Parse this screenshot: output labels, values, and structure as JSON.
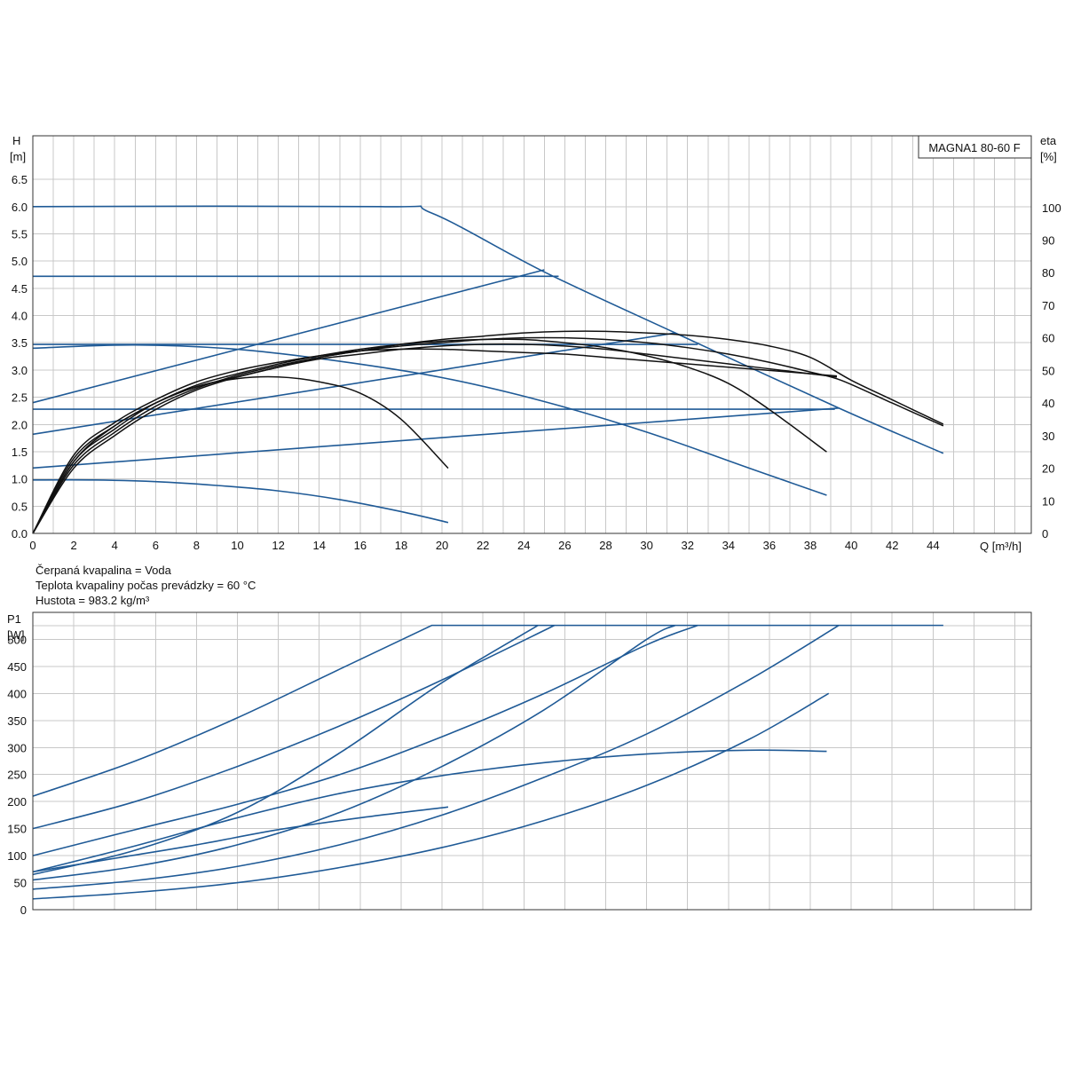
{
  "info": {
    "fluid": "Čerpaná kvapalina = Voda",
    "temperature": "Teplota kvapaliny počas prevádzky = 60 °C",
    "density": "Hustota = 983.2 kg/m³"
  },
  "chart_data": [
    {
      "type": "line",
      "title": "MAGNA1 80-60 F",
      "ylabel": "H",
      "yunit": "[m]",
      "y2label": "eta",
      "y2unit": "[%]",
      "xlabel": "Q [m³/h]",
      "xlim": [
        0,
        48.8
      ],
      "ylim": [
        0,
        7.3
      ],
      "y2lim": [
        0,
        122
      ],
      "xticks": [
        0,
        2,
        4,
        6,
        8,
        10,
        12,
        14,
        16,
        18,
        20,
        22,
        24,
        26,
        28,
        30,
        32,
        34,
        36,
        38,
        40,
        42,
        44
      ],
      "yticks": [
        0.0,
        0.5,
        1.0,
        1.5,
        2.0,
        2.5,
        3.0,
        3.5,
        4.0,
        4.5,
        5.0,
        5.5,
        6.0,
        6.5
      ],
      "yticklabels": [
        "0.0",
        "0.5",
        "1.0",
        "1.5",
        "2.0",
        "2.5",
        "3.0",
        "3.5",
        "4.0",
        "4.5",
        "5.0",
        "5.5",
        "6.0",
        "6.5"
      ],
      "y2ticks": [
        0,
        10,
        20,
        30,
        40,
        50,
        60,
        70,
        80,
        90,
        100
      ],
      "grid": true,
      "head_curves": [
        {
          "color": "#1f5a96",
          "x": [
            0,
            17,
            19.5,
            25,
            31.4,
            39.4,
            44.5
          ],
          "y": [
            6.0,
            6.0,
            5.88,
            4.8,
            3.68,
            2.3,
            1.47
          ]
        },
        {
          "color": "#1f5a96",
          "x": [
            0,
            25.7
          ],
          "y": [
            4.72,
            4.72
          ]
        },
        {
          "color": "#1f5a96",
          "x": [
            0,
            32.5
          ],
          "y": [
            3.47,
            3.47
          ]
        },
        {
          "color": "#1f5a96",
          "x": [
            0,
            39.2
          ],
          "y": [
            2.28,
            2.28
          ]
        },
        {
          "color": "#1f5a96",
          "x": [
            0,
            25
          ],
          "y": [
            2.4,
            4.84
          ]
        },
        {
          "color": "#1f5a96",
          "x": [
            0,
            31.4
          ],
          "y": [
            1.82,
            3.68
          ]
        },
        {
          "color": "#1f5a96",
          "x": [
            0,
            39.4
          ],
          "y": [
            1.2,
            2.3
          ]
        },
        {
          "color": "#1f5a96",
          "x": [
            0,
            5,
            10,
            15,
            20,
            25,
            30,
            35,
            38.8
          ],
          "y": [
            3.4,
            3.46,
            3.38,
            3.16,
            2.86,
            2.42,
            1.86,
            1.2,
            0.7
          ]
        },
        {
          "color": "#1f5a96",
          "x": [
            0,
            3,
            6,
            9,
            12,
            15,
            18,
            20.3
          ],
          "y": [
            0.98,
            0.98,
            0.95,
            0.88,
            0.78,
            0.62,
            0.4,
            0.2
          ]
        }
      ],
      "eta_curves": [
        {
          "x": [
            0,
            2,
            4,
            6,
            8,
            10,
            12,
            14,
            16,
            18,
            20,
            22,
            24,
            26,
            28,
            30,
            32,
            34,
            36,
            38,
            40,
            42,
            44.5
          ],
          "y": [
            0,
            20,
            30,
            38,
            44,
            48,
            51,
            54,
            56,
            58,
            59.5,
            60.5,
            61.5,
            62,
            62,
            61.5,
            60.8,
            59.5,
            57.5,
            54,
            47,
            41,
            33.5
          ]
        },
        {
          "x": [
            0,
            2,
            4,
            6,
            8,
            10,
            12,
            14,
            16,
            18,
            20,
            22,
            24,
            26,
            28,
            30,
            32,
            34,
            36,
            38,
            39.5,
            42,
            44.5
          ],
          "y": [
            0,
            21,
            31,
            39,
            44.5,
            48.5,
            51.5,
            54,
            56,
            57.5,
            58.5,
            59.5,
            60,
            60,
            59.5,
            58.5,
            57,
            55,
            52.5,
            49.5,
            47,
            40,
            33
          ]
        },
        {
          "x": [
            0,
            2,
            4,
            6,
            8,
            10,
            12,
            14,
            16,
            18,
            20,
            22,
            24,
            26,
            28,
            30,
            32,
            34,
            36,
            38.8
          ],
          "y": [
            0,
            22,
            33,
            40,
            45.5,
            49,
            52,
            54.5,
            56.5,
            58,
            59,
            59.5,
            59.5,
            58.5,
            57,
            54.5,
            51,
            46,
            38,
            25
          ]
        },
        {
          "x": [
            0,
            2,
            4,
            6,
            8,
            10,
            12,
            14,
            16,
            18,
            20,
            22,
            24,
            26,
            28,
            30,
            32,
            34,
            36,
            38,
            39.3
          ],
          "y": [
            0,
            24,
            34,
            41,
            46.5,
            50,
            52.5,
            54.5,
            56,
            56.5,
            56.5,
            56,
            55.5,
            55,
            54,
            53,
            52,
            51,
            50,
            49,
            48.3
          ]
        },
        {
          "x": [
            0,
            2,
            4,
            6,
            8,
            10,
            12,
            14,
            16,
            18,
            20,
            22,
            24,
            26,
            28,
            30,
            32,
            34,
            36,
            38,
            39.3
          ],
          "y": [
            0,
            23,
            33,
            40,
            45,
            48,
            51,
            53.5,
            55,
            56.5,
            57.5,
            58,
            58,
            57.5,
            56.5,
            55,
            53.5,
            52,
            50.5,
            49,
            48
          ]
        },
        {
          "x": [
            0,
            2,
            4,
            6,
            8,
            10,
            12,
            14,
            16,
            18,
            20.3
          ],
          "y": [
            0,
            22,
            32,
            40,
            45,
            47.5,
            48,
            46.5,
            43,
            35,
            20
          ]
        }
      ]
    },
    {
      "type": "line",
      "ylabel": "P1",
      "yunit": "[W]",
      "xlim": [
        0,
        48.8
      ],
      "ylim": [
        0,
        550
      ],
      "yticks": [
        0,
        50,
        100,
        150,
        200,
        250,
        300,
        350,
        400,
        450,
        500
      ],
      "xticks": [
        0,
        2,
        4,
        6,
        8,
        10,
        12,
        14,
        16,
        18,
        20,
        22,
        24,
        26,
        28,
        30,
        32,
        34,
        36,
        38,
        40,
        42,
        44
      ],
      "grid": true,
      "power_curves": [
        {
          "x": [
            0,
            5,
            10,
            15,
            19.5,
            44.5
          ],
          "y": [
            210,
            275,
            355,
            445,
            526,
            526
          ]
        },
        {
          "x": [
            0,
            5,
            10,
            15,
            20,
            25.5
          ],
          "y": [
            150,
            200,
            265,
            340,
            425,
            526
          ]
        },
        {
          "x": [
            0,
            5,
            10,
            15,
            20,
            24.7
          ],
          "y": [
            65,
            110,
            180,
            290,
            420,
            526
          ]
        },
        {
          "x": [
            0,
            5,
            10,
            15,
            20,
            25,
            30,
            32.5
          ],
          "y": [
            100,
            148,
            195,
            250,
            320,
            400,
            490,
            526
          ]
        },
        {
          "x": [
            0,
            5,
            10,
            15,
            20,
            25,
            30,
            31.4
          ],
          "y": [
            55,
            80,
            120,
            180,
            265,
            370,
            500,
            526
          ]
        },
        {
          "x": [
            0,
            5,
            10,
            15,
            20,
            25,
            30,
            35,
            39.4
          ],
          "y": [
            38,
            54,
            80,
            120,
            175,
            245,
            325,
            425,
            526
          ]
        },
        {
          "x": [
            0,
            5,
            10,
            15,
            20,
            25,
            30,
            35,
            38.9
          ],
          "y": [
            20,
            32,
            50,
            78,
            115,
            165,
            230,
            315,
            400
          ]
        },
        {
          "x": [
            0,
            40,
            39.9
          ],
          "y": [
            0,
            0,
            0
          ]
        },
        {
          "x": [
            0,
            5,
            10,
            15,
            20,
            25,
            30,
            35,
            38.8
          ],
          "y": [
            70,
            118,
            170,
            215,
            248,
            272,
            288,
            295,
            293
          ]
        },
        {
          "x": [
            0,
            4,
            8,
            12,
            16,
            20.3
          ],
          "y": [
            70,
            95,
            120,
            148,
            170,
            190
          ]
        }
      ]
    }
  ]
}
